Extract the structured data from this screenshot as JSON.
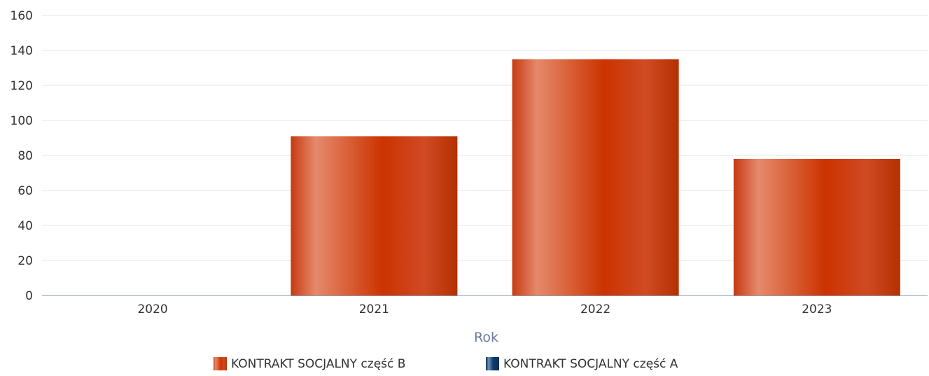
{
  "chart_data": {
    "type": "bar",
    "categories": [
      "2020",
      "2021",
      "2022",
      "2023"
    ],
    "series": [
      {
        "name": "KONTRAKT SOCJALNY część B",
        "values": [
          0,
          91,
          135,
          78
        ],
        "color": "#cc3300"
      },
      {
        "name": "KONTRAKT SOCJALNY część A",
        "values": [
          0,
          0,
          0,
          0
        ],
        "color": "#0d3b6e"
      }
    ],
    "xlabel": "Rok",
    "ylabel": "",
    "ylim": [
      0,
      160
    ],
    "yticks": [
      0,
      20,
      40,
      60,
      80,
      100,
      120,
      140,
      160
    ],
    "grid": true,
    "legend": "bottom-center"
  }
}
